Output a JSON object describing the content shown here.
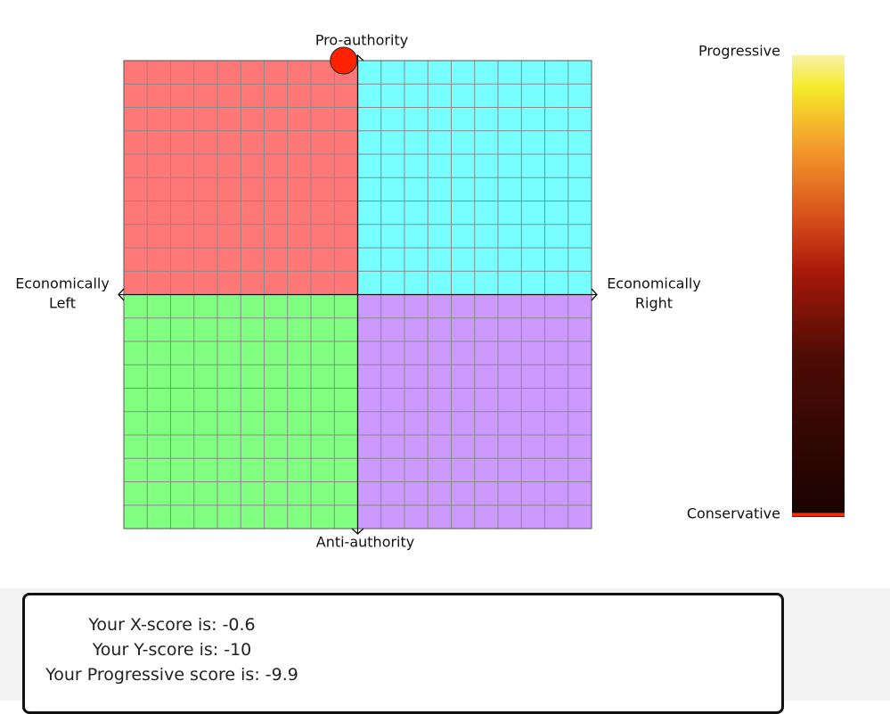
{
  "compass": {
    "top_label": "Pro-authority",
    "bottom_label": "Anti-authority",
    "left_label": [
      "Economically",
      "Left"
    ],
    "right_label": [
      "Economically",
      "Right"
    ],
    "xlim": [
      -10,
      10
    ],
    "ylim": [
      -10,
      10
    ]
  },
  "progressive_bar": {
    "top_label": "Progressive",
    "bottom_label": "Conservative",
    "range": [
      -10,
      10
    ]
  },
  "results": [
    {
      "label": "Your X-score is:",
      "value": -0.6
    },
    {
      "label": "Your Y-score is:",
      "value": -10
    },
    {
      "label": "Your Progressive score is:",
      "value": -9.9
    }
  ]
}
